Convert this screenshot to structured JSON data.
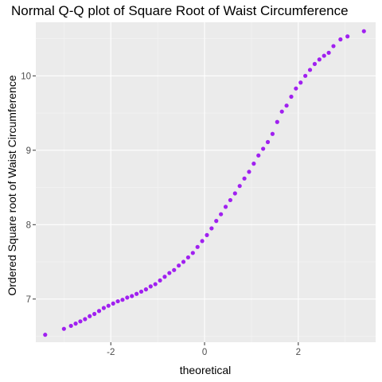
{
  "chart_data": {
    "type": "scatter",
    "title": "Normal Q-Q plot of Square Root of Waist Circumference",
    "xlabel": "theoretical",
    "ylabel": "Ordered Square root of Waist Circumference",
    "xlim": [
      -3.6,
      3.65
    ],
    "ylim": [
      6.42,
      10.72
    ],
    "x_ticks": [
      -2,
      0,
      2
    ],
    "x_tick_labels": [
      "-2",
      "0",
      "2"
    ],
    "y_ticks": [
      7,
      8,
      9,
      10
    ],
    "y_tick_labels": [
      "7",
      "8",
      "9",
      "10"
    ],
    "grid": true,
    "legend": "none",
    "colors": {
      "panel": "#ebebeb",
      "grid_major": "#ffffff",
      "grid_minor": "#f5f5f5",
      "point": "#a020f0",
      "tick": "#333333"
    },
    "series": [
      {
        "x": [
          -3.4,
          -3.0,
          -2.85,
          -2.75,
          -2.65,
          -2.55,
          -2.45,
          -2.35,
          -2.25,
          -2.15,
          -2.05,
          -1.95,
          -1.85,
          -1.75,
          -1.65,
          -1.55,
          -1.45,
          -1.35,
          -1.25,
          -1.15,
          -1.05,
          -0.95,
          -0.85,
          -0.75,
          -0.65,
          -0.55,
          -0.45,
          -0.35,
          -0.25,
          -0.15,
          -0.05,
          0.05,
          0.15,
          0.25,
          0.35,
          0.45,
          0.55,
          0.65,
          0.75,
          0.85,
          0.95,
          1.05,
          1.15,
          1.25,
          1.35,
          1.45,
          1.55,
          1.65,
          1.75,
          1.85,
          1.95,
          2.05,
          2.15,
          2.25,
          2.35,
          2.45,
          2.55,
          2.65,
          2.75,
          2.9,
          3.05,
          3.4
        ],
        "y": [
          6.52,
          6.6,
          6.64,
          6.67,
          6.7,
          6.73,
          6.77,
          6.8,
          6.84,
          6.88,
          6.91,
          6.94,
          6.97,
          6.99,
          7.02,
          7.04,
          7.07,
          7.1,
          7.13,
          7.17,
          7.2,
          7.25,
          7.3,
          7.35,
          7.39,
          7.45,
          7.5,
          7.56,
          7.62,
          7.7,
          7.78,
          7.86,
          7.95,
          8.05,
          8.14,
          8.24,
          8.33,
          8.42,
          8.52,
          8.62,
          8.71,
          8.82,
          8.93,
          9.02,
          9.11,
          9.22,
          9.38,
          9.52,
          9.6,
          9.72,
          9.83,
          9.91,
          10.0,
          10.08,
          10.16,
          10.22,
          10.27,
          10.31,
          10.4,
          10.49,
          10.53,
          10.6
        ]
      }
    ]
  }
}
